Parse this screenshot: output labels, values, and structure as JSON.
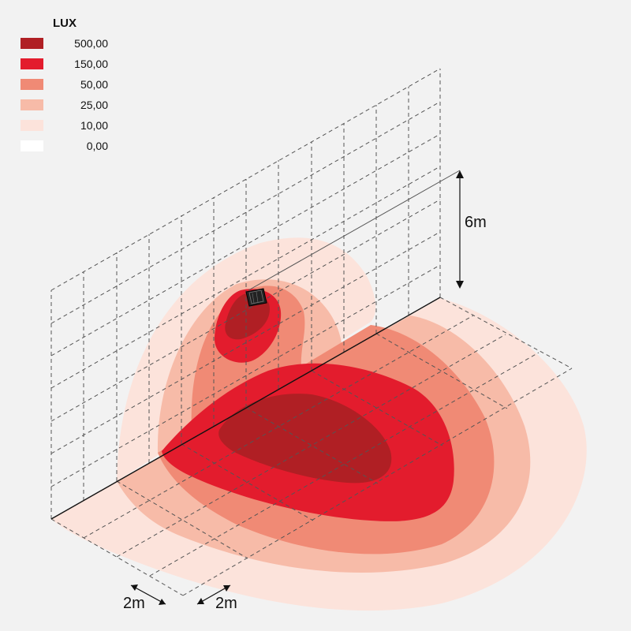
{
  "legend": {
    "title": "LUX",
    "items": [
      {
        "value": "500,00",
        "color": "#b01f24"
      },
      {
        "value": "150,00",
        "color": "#e31c2d"
      },
      {
        "value": "50,00",
        "color": "#f08a75"
      },
      {
        "value": "25,00",
        "color": "#f7bba8"
      },
      {
        "value": "10,00",
        "color": "#fce3db"
      },
      {
        "value": "0,00",
        "color": "#ffffff"
      }
    ]
  },
  "dimensions": {
    "height": "6m",
    "grid_spacing_a": "2m",
    "grid_spacing_b": "2m"
  }
}
